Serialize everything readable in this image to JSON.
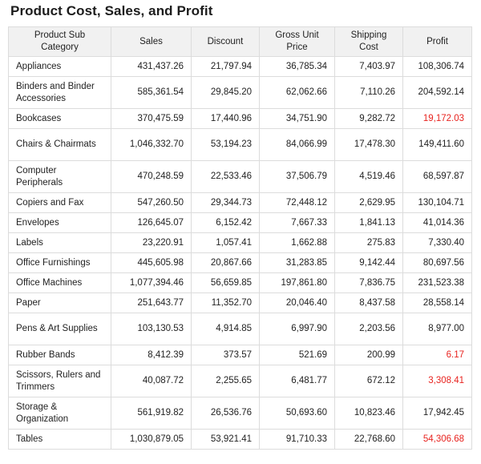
{
  "title": "Product Cost, Sales, and Profit",
  "colors": {
    "header_bg": "#f1f1f1",
    "border": "#dcdcdc",
    "text": "#222222",
    "loss_red": "#e8231f"
  },
  "table": {
    "headers": [
      "Product Sub Category",
      "Sales",
      "Discount",
      "Gross Unit Price",
      "Shipping Cost",
      "Profit"
    ],
    "rows": [
      {
        "category": "Appliances",
        "sales": "431,437.26",
        "discount": "21,797.94",
        "gross_unit_price": "36,785.34",
        "shipping_cost": "7,403.97",
        "profit": "108,306.74",
        "profit_negative": false
      },
      {
        "category": "Binders and Binder Accessories",
        "sales": "585,361.54",
        "discount": "29,845.20",
        "gross_unit_price": "62,062.66",
        "shipping_cost": "7,110.26",
        "profit": "204,592.14",
        "profit_negative": false
      },
      {
        "category": "Bookcases",
        "sales": "370,475.59",
        "discount": "17,440.96",
        "gross_unit_price": "34,751.90",
        "shipping_cost": "9,282.72",
        "profit": "19,172.03",
        "profit_negative": true
      },
      {
        "category": "Chairs & Chairmats",
        "sales": "1,046,332.70",
        "discount": "53,194.23",
        "gross_unit_price": "84,066.99",
        "shipping_cost": "17,478.30",
        "profit": "149,411.60",
        "profit_negative": false
      },
      {
        "category": "Computer Peripherals",
        "sales": "470,248.59",
        "discount": "22,533.46",
        "gross_unit_price": "37,506.79",
        "shipping_cost": "4,519.46",
        "profit": "68,597.87",
        "profit_negative": false
      },
      {
        "category": "Copiers and Fax",
        "sales": "547,260.50",
        "discount": "29,344.73",
        "gross_unit_price": "72,448.12",
        "shipping_cost": "2,629.95",
        "profit": "130,104.71",
        "profit_negative": false
      },
      {
        "category": "Envelopes",
        "sales": "126,645.07",
        "discount": "6,152.42",
        "gross_unit_price": "7,667.33",
        "shipping_cost": "1,841.13",
        "profit": "41,014.36",
        "profit_negative": false
      },
      {
        "category": "Labels",
        "sales": "23,220.91",
        "discount": "1,057.41",
        "gross_unit_price": "1,662.88",
        "shipping_cost": "275.83",
        "profit": "7,330.40",
        "profit_negative": false
      },
      {
        "category": "Office Furnishings",
        "sales": "445,605.98",
        "discount": "20,867.66",
        "gross_unit_price": "31,283.85",
        "shipping_cost": "9,142.44",
        "profit": "80,697.56",
        "profit_negative": false
      },
      {
        "category": "Office Machines",
        "sales": "1,077,394.46",
        "discount": "56,659.85",
        "gross_unit_price": "197,861.80",
        "shipping_cost": "7,836.75",
        "profit": "231,523.38",
        "profit_negative": false
      },
      {
        "category": "Paper",
        "sales": "251,643.77",
        "discount": "11,352.70",
        "gross_unit_price": "20,046.40",
        "shipping_cost": "8,437.58",
        "profit": "28,558.14",
        "profit_negative": false
      },
      {
        "category": "Pens & Art Supplies",
        "sales": "103,130.53",
        "discount": "4,914.85",
        "gross_unit_price": "6,997.90",
        "shipping_cost": "2,203.56",
        "profit": "8,977.00",
        "profit_negative": false
      },
      {
        "category": "Rubber Bands",
        "sales": "8,412.39",
        "discount": "373.57",
        "gross_unit_price": "521.69",
        "shipping_cost": "200.99",
        "profit": "6.17",
        "profit_negative": true
      },
      {
        "category": "Scissors, Rulers and Trimmers",
        "sales": "40,087.72",
        "discount": "2,255.65",
        "gross_unit_price": "6,481.77",
        "shipping_cost": "672.12",
        "profit": "3,308.41",
        "profit_negative": true
      },
      {
        "category": "Storage & Organization",
        "sales": "561,919.82",
        "discount": "26,536.76",
        "gross_unit_price": "50,693.60",
        "shipping_cost": "10,823.46",
        "profit": "17,942.45",
        "profit_negative": false
      },
      {
        "category": "Tables",
        "sales": "1,030,879.05",
        "discount": "53,921.41",
        "gross_unit_price": "91,710.33",
        "shipping_cost": "22,768.60",
        "profit": "54,306.68",
        "profit_negative": true
      }
    ]
  }
}
